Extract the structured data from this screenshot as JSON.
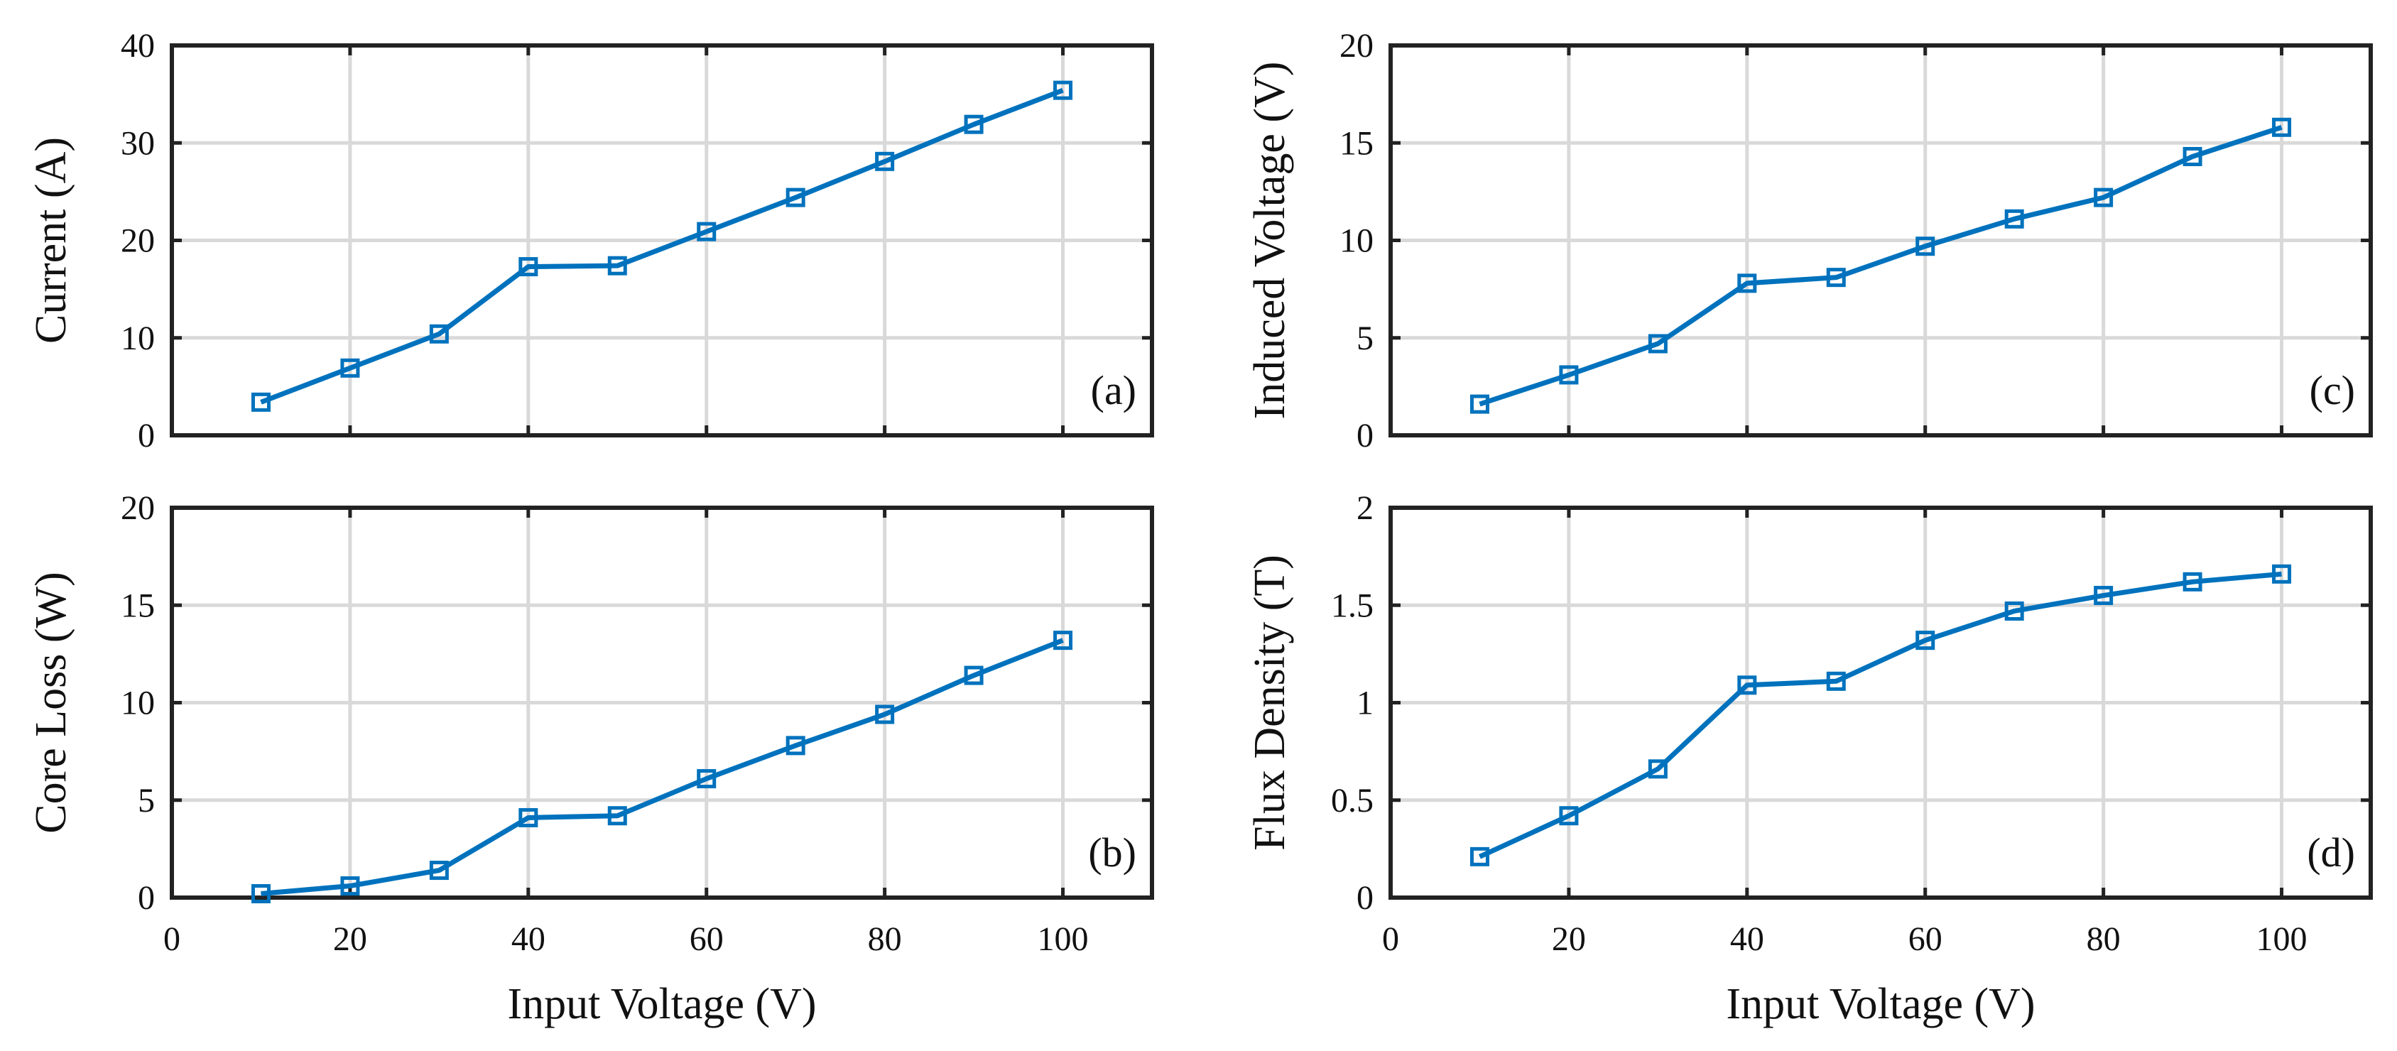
{
  "accent_color": "#0072BD",
  "chart_data": [
    {
      "id": "a",
      "type": "line",
      "panel_label": "(a)",
      "ylabel": "Current (A)",
      "xlabel": "",
      "xlim": [
        0,
        110
      ],
      "ylim": [
        0,
        40
      ],
      "xticks": [
        0,
        20,
        40,
        60,
        80,
        100
      ],
      "xtick_labels_shown": false,
      "yticks": [
        0,
        10,
        20,
        30,
        40
      ],
      "ytick_labels": [
        "0",
        "10",
        "20",
        "30",
        "40"
      ],
      "grid": true,
      "x": [
        10,
        20,
        30,
        40,
        50,
        60,
        70,
        80,
        90,
        100
      ],
      "y": [
        3.4,
        6.9,
        10.4,
        17.3,
        17.4,
        20.9,
        24.4,
        28.1,
        31.9,
        35.4
      ],
      "marker": "square"
    },
    {
      "id": "b",
      "type": "line",
      "panel_label": "(b)",
      "ylabel": "Core Loss (W)",
      "xlabel": "Input Voltage (V)",
      "xlim": [
        0,
        110
      ],
      "ylim": [
        0,
        20
      ],
      "xticks": [
        0,
        20,
        40,
        60,
        80,
        100
      ],
      "xtick_labels_shown": true,
      "xtick_labels": [
        "0",
        "20",
        "40",
        "60",
        "80",
        "100"
      ],
      "yticks": [
        0,
        5,
        10,
        15,
        20
      ],
      "ytick_labels": [
        "0",
        "5",
        "10",
        "15",
        "20"
      ],
      "grid": true,
      "x": [
        10,
        20,
        30,
        40,
        50,
        60,
        70,
        80,
        90,
        100
      ],
      "y": [
        0.2,
        0.6,
        1.4,
        4.1,
        4.2,
        6.1,
        7.8,
        9.4,
        11.4,
        13.2
      ],
      "marker": "square"
    },
    {
      "id": "c",
      "type": "line",
      "panel_label": "(c)",
      "ylabel": "Induced Voltage (V)",
      "xlabel": "",
      "xlim": [
        0,
        110
      ],
      "ylim": [
        0,
        20
      ],
      "xticks": [
        0,
        20,
        40,
        60,
        80,
        100
      ],
      "xtick_labels_shown": false,
      "yticks": [
        0,
        5,
        10,
        15,
        20
      ],
      "ytick_labels": [
        "0",
        "5",
        "10",
        "15",
        "20"
      ],
      "grid": true,
      "x": [
        10,
        20,
        30,
        40,
        50,
        60,
        70,
        80,
        90,
        100
      ],
      "y": [
        1.6,
        3.1,
        4.7,
        7.8,
        8.1,
        9.7,
        11.1,
        12.2,
        14.3,
        15.8
      ],
      "marker": "square"
    },
    {
      "id": "d",
      "type": "line",
      "panel_label": "(d)",
      "ylabel": "Flux Density (T)",
      "xlabel": "Input Voltage (V)",
      "xlim": [
        0,
        110
      ],
      "ylim": [
        0,
        2
      ],
      "xticks": [
        0,
        20,
        40,
        60,
        80,
        100
      ],
      "xtick_labels_shown": true,
      "xtick_labels": [
        "0",
        "20",
        "40",
        "60",
        "80",
        "100"
      ],
      "yticks": [
        0,
        0.5,
        1,
        1.5,
        2
      ],
      "ytick_labels": [
        "0",
        "0.5",
        "1",
        "1.5",
        "2"
      ],
      "grid": true,
      "x": [
        10,
        20,
        30,
        40,
        50,
        60,
        70,
        80,
        90,
        100
      ],
      "y": [
        0.21,
        0.42,
        0.66,
        1.09,
        1.11,
        1.32,
        1.47,
        1.55,
        1.62,
        1.66
      ],
      "marker": "square"
    }
  ]
}
